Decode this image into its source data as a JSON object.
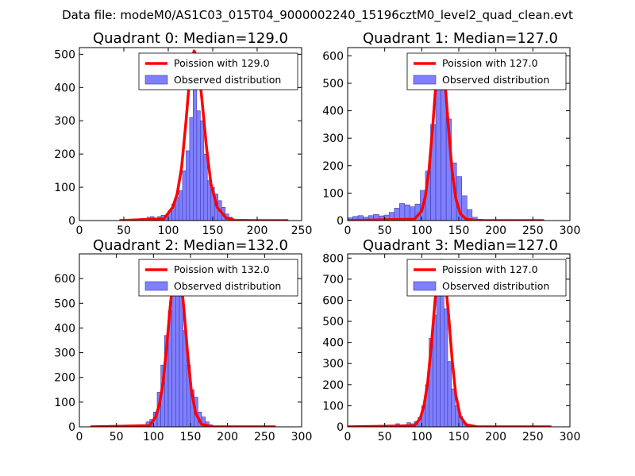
{
  "figure_title": "Data file: modeM0/AS1C03_015T04_9000002240_15196cztM0_level2_quad_clean.evt",
  "colors": {
    "bar_fill": "#8080ff",
    "bar_edge": "#3a3ab0",
    "poisson_line": "#ff0000",
    "legend_edge": "#000000"
  },
  "chart_data": [
    {
      "type": "bar",
      "title": "Quadrant 0: Median=129.0",
      "xlim": [
        0,
        250
      ],
      "ylim": [
        0,
        520
      ],
      "xticks": [
        "0",
        "50",
        "100",
        "150",
        "200",
        "250"
      ],
      "yticks": [
        "0",
        "100",
        "200",
        "300",
        "400",
        "500"
      ],
      "legend": [
        "Poission with 129.0",
        "Observed distribution"
      ],
      "legend_position": "top-right",
      "bin_width": 4,
      "bins": [
        {
          "x": 62,
          "count": 2
        },
        {
          "x": 66,
          "count": 4
        },
        {
          "x": 70,
          "count": 6
        },
        {
          "x": 74,
          "count": 4
        },
        {
          "x": 78,
          "count": 10
        },
        {
          "x": 82,
          "count": 12
        },
        {
          "x": 86,
          "count": 8
        },
        {
          "x": 90,
          "count": 12
        },
        {
          "x": 94,
          "count": 16
        },
        {
          "x": 98,
          "count": 12
        },
        {
          "x": 102,
          "count": 30
        },
        {
          "x": 106,
          "count": 50
        },
        {
          "x": 110,
          "count": 70
        },
        {
          "x": 114,
          "count": 90
        },
        {
          "x": 118,
          "count": 150
        },
        {
          "x": 122,
          "count": 210
        },
        {
          "x": 126,
          "count": 310
        },
        {
          "x": 130,
          "count": 500
        },
        {
          "x": 134,
          "count": 330
        },
        {
          "x": 138,
          "count": 300
        },
        {
          "x": 142,
          "count": 200
        },
        {
          "x": 146,
          "count": 120
        },
        {
          "x": 150,
          "count": 100
        },
        {
          "x": 154,
          "count": 80
        },
        {
          "x": 158,
          "count": 60
        },
        {
          "x": 162,
          "count": 40
        },
        {
          "x": 166,
          "count": 20
        },
        {
          "x": 170,
          "count": 10
        }
      ],
      "poisson_x": [
        45,
        95,
        105,
        110,
        115,
        120,
        125,
        129,
        133,
        138,
        143,
        148,
        155,
        165,
        175,
        195,
        235
      ],
      "poisson_y": [
        0,
        5,
        40,
        80,
        160,
        300,
        460,
        510,
        490,
        360,
        220,
        110,
        40,
        8,
        1,
        0,
        0
      ]
    },
    {
      "type": "bar",
      "title": "Quadrant 1: Median=127.0",
      "xlim": [
        0,
        300
      ],
      "ylim": [
        0,
        630
      ],
      "xticks": [
        "0",
        "50",
        "100",
        "150",
        "200",
        "250",
        "300"
      ],
      "yticks": [
        "0",
        "100",
        "200",
        "300",
        "400",
        "500",
        "600"
      ],
      "legend": [
        "Poission with 127.0",
        "Observed distribution"
      ],
      "legend_position": "top-right",
      "bin_width": 7,
      "bins": [
        {
          "x": 3.5,
          "count": 10
        },
        {
          "x": 10.5,
          "count": 15
        },
        {
          "x": 17.5,
          "count": 18
        },
        {
          "x": 24.5,
          "count": 12
        },
        {
          "x": 31.5,
          "count": 18
        },
        {
          "x": 38.5,
          "count": 22
        },
        {
          "x": 45.5,
          "count": 17
        },
        {
          "x": 52.5,
          "count": 20
        },
        {
          "x": 59.5,
          "count": 30
        },
        {
          "x": 66.5,
          "count": 45
        },
        {
          "x": 73.5,
          "count": 62
        },
        {
          "x": 80.5,
          "count": 57
        },
        {
          "x": 87.5,
          "count": 50
        },
        {
          "x": 94.5,
          "count": 60
        },
        {
          "x": 101.5,
          "count": 110
        },
        {
          "x": 108.5,
          "count": 180
        },
        {
          "x": 115.5,
          "count": 350
        },
        {
          "x": 122.5,
          "count": 600
        },
        {
          "x": 129.5,
          "count": 500
        },
        {
          "x": 136.5,
          "count": 370
        },
        {
          "x": 143.5,
          "count": 210
        },
        {
          "x": 150.5,
          "count": 160
        },
        {
          "x": 157.5,
          "count": 90
        },
        {
          "x": 164.5,
          "count": 40
        },
        {
          "x": 171.5,
          "count": 12
        },
        {
          "x": 178.5,
          "count": 5
        }
      ],
      "poisson_x": [
        0,
        90,
        100,
        105,
        110,
        115,
        120,
        124,
        127,
        131,
        136,
        141,
        146,
        152,
        160,
        175,
        265
      ],
      "poisson_y": [
        0,
        5,
        35,
        90,
        190,
        350,
        530,
        600,
        600,
        520,
        340,
        180,
        80,
        25,
        5,
        0,
        0
      ]
    },
    {
      "type": "bar",
      "title": "Quadrant 2: Median=132.0",
      "xlim": [
        0,
        300
      ],
      "ylim": [
        0,
        700
      ],
      "xticks": [
        "0",
        "50",
        "100",
        "150",
        "200",
        "250",
        "300"
      ],
      "yticks": [
        "0",
        "100",
        "200",
        "300",
        "400",
        "500",
        "600"
      ],
      "legend": [
        "Poission with 132.0",
        "Observed distribution"
      ],
      "legend_position": "top-right",
      "bin_width": 5,
      "bins": [
        {
          "x": 77.5,
          "count": 5
        },
        {
          "x": 82.5,
          "count": 8
        },
        {
          "x": 87.5,
          "count": 6
        },
        {
          "x": 92.5,
          "count": 20
        },
        {
          "x": 97.5,
          "count": 30
        },
        {
          "x": 102.5,
          "count": 60
        },
        {
          "x": 107.5,
          "count": 140
        },
        {
          "x": 112.5,
          "count": 250
        },
        {
          "x": 117.5,
          "count": 370
        },
        {
          "x": 122.5,
          "count": 470
        },
        {
          "x": 127.5,
          "count": 660
        },
        {
          "x": 132.5,
          "count": 640
        },
        {
          "x": 137.5,
          "count": 560
        },
        {
          "x": 142.5,
          "count": 390
        },
        {
          "x": 147.5,
          "count": 250
        },
        {
          "x": 152.5,
          "count": 150
        },
        {
          "x": 157.5,
          "count": 120
        },
        {
          "x": 162.5,
          "count": 60
        },
        {
          "x": 167.5,
          "count": 40
        },
        {
          "x": 172.5,
          "count": 20
        },
        {
          "x": 177.5,
          "count": 8
        }
      ],
      "poisson_x": [
        15,
        95,
        103,
        108,
        113,
        118,
        123,
        128,
        132,
        136,
        141,
        146,
        151,
        157,
        165,
        180,
        265
      ],
      "poisson_y": [
        0,
        5,
        40,
        90,
        180,
        330,
        500,
        640,
        670,
        630,
        480,
        300,
        150,
        55,
        10,
        0,
        0
      ]
    },
    {
      "type": "bar",
      "title": "Quadrant 3: Median=127.0",
      "xlim": [
        0,
        300
      ],
      "ylim": [
        0,
        820
      ],
      "xticks": [
        "0",
        "50",
        "100",
        "150",
        "200",
        "250",
        "300"
      ],
      "yticks": [
        "0",
        "100",
        "200",
        "300",
        "400",
        "500",
        "600",
        "700",
        "800"
      ],
      "legend": [
        "Poission with 127.0",
        "Observed distribution"
      ],
      "legend_position": "top-right",
      "bin_width": 5,
      "bins": [
        {
          "x": 67.5,
          "count": 15
        },
        {
          "x": 72.5,
          "count": 5
        },
        {
          "x": 77.5,
          "count": 10
        },
        {
          "x": 82.5,
          "count": 20
        },
        {
          "x": 87.5,
          "count": 15
        },
        {
          "x": 92.5,
          "count": 25
        },
        {
          "x": 97.5,
          "count": 45
        },
        {
          "x": 102.5,
          "count": 100
        },
        {
          "x": 107.5,
          "count": 200
        },
        {
          "x": 112.5,
          "count": 420
        },
        {
          "x": 117.5,
          "count": 530
        },
        {
          "x": 122.5,
          "count": 720
        },
        {
          "x": 127.5,
          "count": 660
        },
        {
          "x": 132.5,
          "count": 560
        },
        {
          "x": 137.5,
          "count": 310
        },
        {
          "x": 142.5,
          "count": 180
        },
        {
          "x": 147.5,
          "count": 100
        },
        {
          "x": 152.5,
          "count": 50
        },
        {
          "x": 157.5,
          "count": 20
        },
        {
          "x": 162.5,
          "count": 8
        }
      ],
      "poisson_x": [
        0,
        90,
        98,
        103,
        108,
        113,
        118,
        123,
        127,
        131,
        136,
        141,
        146,
        152,
        160,
        175,
        275
      ],
      "poisson_y": [
        0,
        5,
        40,
        100,
        210,
        390,
        600,
        760,
        790,
        720,
        540,
        320,
        150,
        50,
        10,
        0,
        0
      ]
    }
  ]
}
